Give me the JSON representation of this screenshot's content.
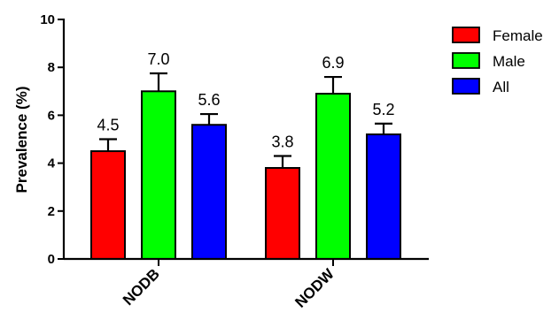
{
  "chart_data": {
    "type": "bar",
    "title": "",
    "xlabel": "",
    "ylabel": "Prevalence (%)",
    "ylim": [
      0,
      10
    ],
    "yticks": [
      "0",
      "2",
      "4",
      "6",
      "8",
      "10"
    ],
    "categories": [
      "NODB",
      "NODW"
    ],
    "series": [
      {
        "name": "Female",
        "color": "#ff0000",
        "values": [
          4.5,
          3.8
        ],
        "errors": [
          0.5,
          0.5
        ],
        "labels": [
          "4.5",
          "3.8"
        ]
      },
      {
        "name": "Male",
        "color": "#00ff00",
        "values": [
          7.0,
          6.9
        ],
        "errors": [
          0.75,
          0.7
        ],
        "labels": [
          "7.0",
          "6.9"
        ]
      },
      {
        "name": "All",
        "color": "#0000ff",
        "values": [
          5.6,
          5.2
        ],
        "errors": [
          0.45,
          0.45
        ],
        "labels": [
          "5.6",
          "5.2"
        ]
      }
    ],
    "legend_position": "top-right",
    "grid": false
  }
}
